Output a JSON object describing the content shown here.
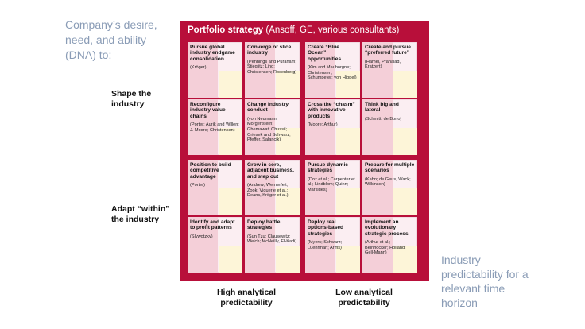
{
  "left_label": "Company’s desire, need, and ability (DNA) to:",
  "row_labels": {
    "shape": "Shape the industry",
    "adapt": "Adapt “within” the industry"
  },
  "right_label": "Industry predictability for a relevant time horizon",
  "col_labels": {
    "high": "High analytical predictability",
    "low": "Low analytical predictability"
  },
  "panel": {
    "title_bold": "Portfolio strategy",
    "title_rest": " (Ansoff, GE, various consultants)"
  },
  "cards": [
    {
      "title": "Pursue global industry endgame consolidation",
      "refs": "(Kröger)"
    },
    {
      "title": "Converge or slice industry",
      "refs": "(Pennings and Puranam; Stieglitz; Lind; Christensen; Rosenberg)"
    },
    {
      "title": "Create “Blue Ocean” opportunities",
      "refs": "(Kim and Mauborgne; Christensen; Schumpeter; von Hippel)"
    },
    {
      "title": "Create and pursue “preferred future”",
      "refs": "(Hamel, Prahalad, Kratzert)"
    },
    {
      "title": "Reconfigure industry value chains",
      "refs": "(Porter; Aurik and Willen; J. Moore; Christensen)"
    },
    {
      "title": "Change industry conduct",
      "refs": "(von Neumann, Morgenstern; Ghemawat; Chussil; Oriesek and Schwarz; Pfeffer, Salancik)"
    },
    {
      "title": "Cross the “chasm” with innovative products",
      "refs": "(Moore; Arthur)"
    },
    {
      "title": "Think big and lateral",
      "refs": "(Schmitt, de Bono)"
    },
    {
      "title": "Position to build competitive advantage",
      "refs": "(Porter)"
    },
    {
      "title": "Grow in core, adjacent business, and step out",
      "refs": "(Andrew; Wernerfelt; Zook; Viguerie et al.; Deans, Kröger et al.)"
    },
    {
      "title": "Pursue dynamic strategies",
      "refs": "(Doz et al.; Carpenter et al.; Lindblom; Quinn; Markides)"
    },
    {
      "title": "Prepare for multiple scenarios",
      "refs": "(Kahn; de Geus, Wack; Wilkinson)"
    },
    {
      "title": "Identify and adapt to profit patterns",
      "refs": "(Slywotzky)"
    },
    {
      "title": "Deploy battle strategies",
      "refs": "(Sun Tzu; Clausewitz; Welch; McNeilly, El-Kadi)"
    },
    {
      "title": "Deploy real options-based strategies",
      "refs": "(Myers; Schwarz; Luehrman; Arms)"
    },
    {
      "title": "Implement an evolutionary strategic process",
      "refs": "(Arthur et al.; Beinhocker; Holland; Gell-Mann)"
    }
  ]
}
